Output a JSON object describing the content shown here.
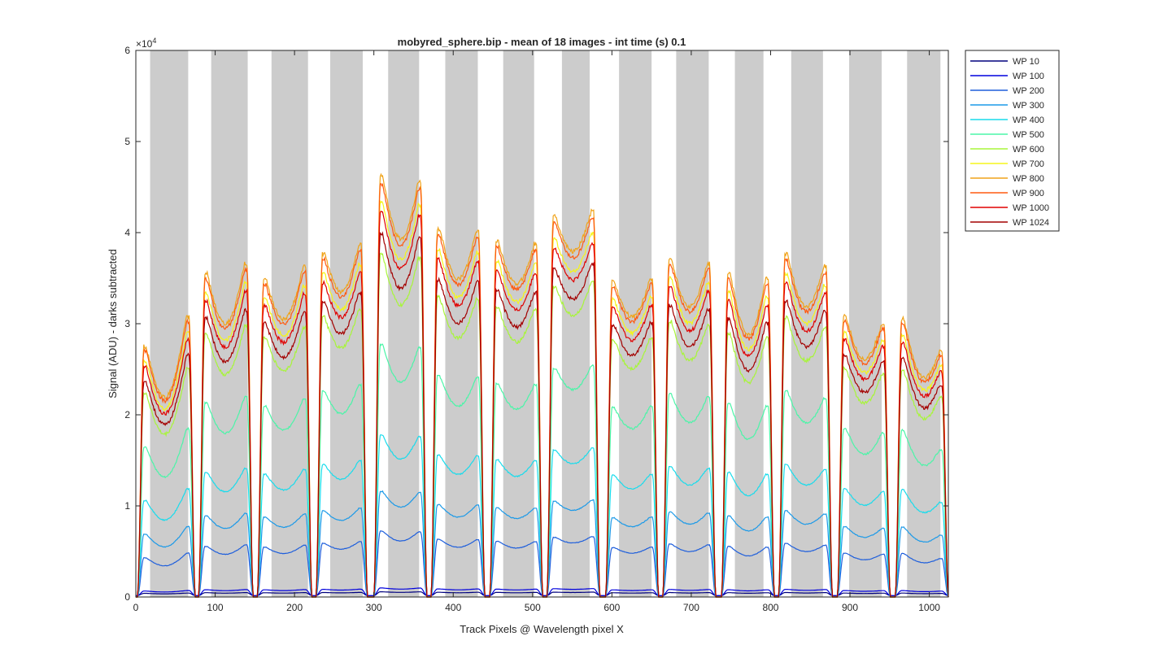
{
  "chart_data": {
    "type": "line",
    "title": "mobyred_sphere.bip - mean of 18 images - int time (s) 0.1",
    "xlabel": "Track Pixels @ Wavelength pixel X",
    "ylabel": "Signal (ADU) - darks subtracted",
    "y_multiplier_label": "×10",
    "y_multiplier_exp": "4",
    "xlim": [
      0,
      1024
    ],
    "ylim": [
      0,
      60000
    ],
    "xticks": [
      0,
      100,
      200,
      300,
      400,
      500,
      600,
      700,
      800,
      900,
      1000
    ],
    "yticks": [
      0,
      10000,
      20000,
      30000,
      40000,
      50000,
      60000
    ],
    "ytick_labels": [
      "0",
      "1",
      "2",
      "3",
      "4",
      "5",
      "6"
    ],
    "grid": false,
    "legend_position": "outside-top-right",
    "shaded_bands": [
      [
        18,
        66
      ],
      [
        95,
        141
      ],
      [
        171,
        217
      ],
      [
        245,
        286
      ],
      [
        318,
        357
      ],
      [
        390,
        431
      ],
      [
        463,
        502
      ],
      [
        537,
        572
      ],
      [
        609,
        650
      ],
      [
        681,
        722
      ],
      [
        755,
        791
      ],
      [
        826,
        866
      ],
      [
        899,
        940
      ],
      [
        972,
        1014
      ]
    ],
    "tracks": [
      {
        "x_start": 6,
        "x_end": 71,
        "left_rel": 1.0,
        "min_rel": 0.8,
        "right_rel": 1.12
      },
      {
        "x_start": 83,
        "x_end": 144,
        "left_rel": 1.29,
        "min_rel": 1.09,
        "right_rel": 1.33
      },
      {
        "x_start": 157,
        "x_end": 218,
        "left_rel": 1.27,
        "min_rel": 1.11,
        "right_rel": 1.32
      },
      {
        "x_start": 231,
        "x_end": 288,
        "left_rel": 1.37,
        "min_rel": 1.22,
        "right_rel": 1.41
      },
      {
        "x_start": 304,
        "x_end": 363,
        "left_rel": 1.68,
        "min_rel": 1.43,
        "right_rel": 1.66
      },
      {
        "x_start": 376,
        "x_end": 436,
        "left_rel": 1.47,
        "min_rel": 1.27,
        "right_rel": 1.46
      },
      {
        "x_start": 450,
        "x_end": 509,
        "left_rel": 1.42,
        "min_rel": 1.25,
        "right_rel": 1.41
      },
      {
        "x_start": 522,
        "x_end": 581,
        "left_rel": 1.52,
        "min_rel": 1.38,
        "right_rel": 1.54
      },
      {
        "x_start": 596,
        "x_end": 655,
        "left_rel": 1.26,
        "min_rel": 1.12,
        "right_rel": 1.27
      },
      {
        "x_start": 668,
        "x_end": 727,
        "left_rel": 1.35,
        "min_rel": 1.16,
        "right_rel": 1.33
      },
      {
        "x_start": 742,
        "x_end": 801,
        "left_rel": 1.29,
        "min_rel": 1.05,
        "right_rel": 1.27
      },
      {
        "x_start": 814,
        "x_end": 874,
        "left_rel": 1.37,
        "min_rel": 1.16,
        "right_rel": 1.32
      },
      {
        "x_start": 888,
        "x_end": 947,
        "left_rel": 1.12,
        "min_rel": 0.95,
        "right_rel": 1.09
      },
      {
        "x_start": 961,
        "x_end": 1020,
        "left_rel": 1.11,
        "min_rel": 0.88,
        "right_rel": 0.98
      }
    ],
    "series": [
      {
        "name": "WP 10",
        "color": "#00007f",
        "level": 250
      },
      {
        "name": "WP 100",
        "color": "#0000dd",
        "level": 500
      },
      {
        "name": "WP 200",
        "color": "#1f5fdc",
        "level": 4300
      },
      {
        "name": "WP 300",
        "color": "#1c9ae8",
        "level": 6900
      },
      {
        "name": "WP 400",
        "color": "#19dcec",
        "level": 10600
      },
      {
        "name": "WP 500",
        "color": "#4bf5a8",
        "level": 16500
      },
      {
        "name": "WP 600",
        "color": "#a8f53a",
        "level": 22400
      },
      {
        "name": "WP 700",
        "color": "#f5f51a",
        "level": 25900
      },
      {
        "name": "WP 800",
        "color": "#f0a41a",
        "level": 27500
      },
      {
        "name": "WP 900",
        "color": "#ff5a10",
        "level": 27000
      },
      {
        "name": "WP 1000",
        "color": "#e00000",
        "level": 25200
      },
      {
        "name": "WP 1024",
        "color": "#a30000",
        "level": 23700
      }
    ]
  }
}
